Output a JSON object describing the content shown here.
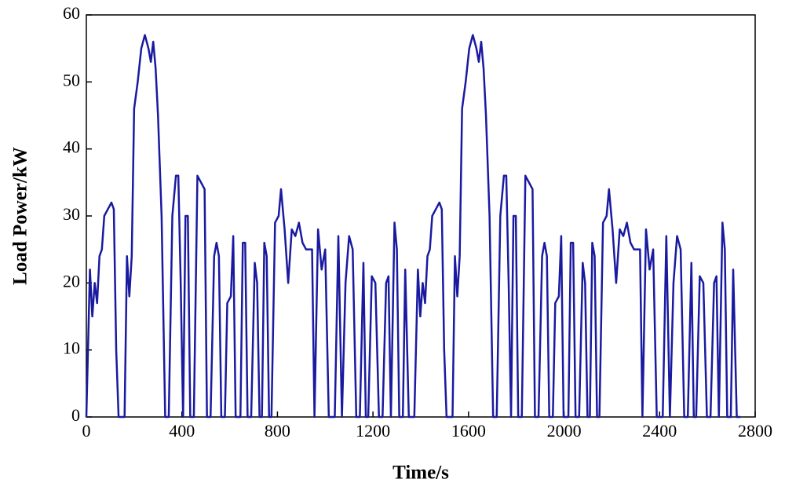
{
  "chart_data": {
    "type": "line",
    "x_label": "Time/s",
    "y_label": "Load Power/kW",
    "color": "#1a1aa0",
    "xlim": [
      0,
      2800
    ],
    "xticks": [
      0,
      400,
      800,
      1200,
      1600,
      2000,
      2400,
      2800
    ],
    "ylim": [
      0,
      60
    ],
    "yticks": [
      0,
      10,
      20,
      30,
      40,
      50,
      60
    ],
    "x": [
      0,
      15,
      25,
      35,
      45,
      55,
      65,
      75,
      90,
      105,
      115,
      125,
      135,
      160,
      170,
      180,
      190,
      200,
      215,
      230,
      245,
      260,
      270,
      280,
      290,
      300,
      315,
      330,
      345,
      360,
      375,
      385,
      395,
      405,
      415,
      425,
      435,
      450,
      465,
      480,
      495,
      505,
      520,
      535,
      545,
      555,
      565,
      580,
      590,
      605,
      615,
      625,
      645,
      655,
      665,
      675,
      690,
      705,
      715,
      725,
      735,
      745,
      755,
      765,
      775,
      790,
      805,
      815,
      830,
      845,
      860,
      875,
      890,
      905,
      920,
      945,
      955,
      970,
      985,
      1000,
      1015,
      1040,
      1055,
      1070,
      1085,
      1100,
      1115,
      1130,
      1145,
      1160,
      1170,
      1180,
      1195,
      1210,
      1225,
      1240,
      1255,
      1265,
      1275,
      1290,
      1300,
      1310,
      1325,
      1335,
      1350,
      1365,
      1373,
      1388,
      1398,
      1408,
      1418,
      1428,
      1438,
      1448,
      1463,
      1478,
      1488,
      1498,
      1508,
      1533,
      1543,
      1553,
      1563,
      1573,
      1588,
      1603,
      1618,
      1633,
      1643,
      1653,
      1663,
      1673,
      1688,
      1703,
      1718,
      1733,
      1748,
      1758,
      1768,
      1778,
      1788,
      1798,
      1808,
      1823,
      1838,
      1853,
      1868,
      1878,
      1893,
      1908,
      1918,
      1928,
      1938,
      1953,
      1963,
      1978,
      1988,
      1998,
      2018,
      2028,
      2038,
      2048,
      2063,
      2078,
      2088,
      2098,
      2108,
      2118,
      2128,
      2138,
      2148,
      2163,
      2178,
      2188,
      2203,
      2218,
      2233,
      2248,
      2263,
      2278,
      2293,
      2318,
      2328,
      2343,
      2358,
      2373,
      2388,
      2413,
      2428,
      2443,
      2458,
      2473,
      2488,
      2503,
      2518,
      2533,
      2543,
      2553,
      2568,
      2583,
      2598,
      2613,
      2628,
      2638,
      2648,
      2663,
      2673,
      2683,
      2698,
      2708,
      2723,
      2738
    ],
    "values": [
      0,
      22,
      15,
      20,
      17,
      24,
      25,
      30,
      31,
      32,
      31,
      10,
      0,
      0,
      24,
      18,
      24,
      46,
      50,
      55,
      57,
      55,
      53,
      56,
      52,
      45,
      30,
      0,
      0,
      30,
      36,
      36,
      20,
      0,
      30,
      30,
      0,
      0,
      36,
      35,
      34,
      0,
      0,
      24,
      26,
      24,
      0,
      0,
      17,
      18,
      27,
      0,
      0,
      26,
      26,
      0,
      0,
      23,
      20,
      0,
      0,
      26,
      24,
      0,
      0,
      29,
      30,
      34,
      28,
      20,
      28,
      27,
      29,
      26,
      25,
      25,
      0,
      28,
      22,
      25,
      0,
      0,
      27,
      0,
      20,
      27,
      25,
      0,
      0,
      23,
      0,
      0,
      21,
      20,
      0,
      0,
      20,
      21,
      0,
      29,
      25,
      0,
      0,
      22,
      0,
      0,
      0,
      22,
      15,
      20,
      17,
      24,
      25,
      30,
      31,
      32,
      31,
      10,
      0,
      0,
      24,
      18,
      24,
      46,
      50,
      55,
      57,
      55,
      53,
      56,
      52,
      45,
      30,
      0,
      0,
      30,
      36,
      36,
      20,
      0,
      30,
      30,
      0,
      0,
      36,
      35,
      34,
      0,
      0,
      24,
      26,
      24,
      0,
      0,
      17,
      18,
      27,
      0,
      0,
      26,
      26,
      0,
      0,
      23,
      20,
      0,
      0,
      26,
      24,
      0,
      0,
      29,
      30,
      34,
      28,
      20,
      28,
      27,
      29,
      26,
      25,
      25,
      0,
      28,
      22,
      25,
      0,
      0,
      27,
      0,
      20,
      27,
      25,
      0,
      0,
      23,
      0,
      0,
      21,
      20,
      0,
      0,
      20,
      21,
      0,
      29,
      25,
      0,
      0,
      22,
      0,
      0
    ]
  }
}
